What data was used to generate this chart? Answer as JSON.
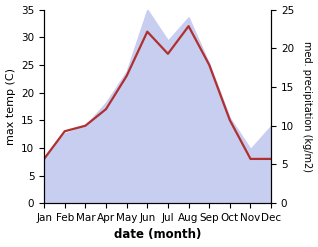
{
  "months": [
    "Jan",
    "Feb",
    "Mar",
    "Apr",
    "May",
    "Jun",
    "Jul",
    "Aug",
    "Sep",
    "Oct",
    "Nov",
    "Dec"
  ],
  "temperature": [
    8,
    13,
    14,
    17,
    23,
    31,
    27,
    32,
    25,
    15,
    8,
    8
  ],
  "precipitation": [
    6,
    9,
    10,
    13,
    17,
    25,
    21,
    24,
    18,
    11,
    7,
    10
  ],
  "temp_color": "#b03030",
  "precip_fill_color": "#c8cef0",
  "temp_ylim": [
    0,
    35
  ],
  "precip_ylim": [
    0,
    25
  ],
  "xlabel": "date (month)",
  "ylabel_left": "max temp (C)",
  "ylabel_right": "med. precipitation (kg/m2)",
  "background_color": "#ffffff",
  "temp_linewidth": 1.6,
  "tick_label_fontsize": 7.5,
  "axis_label_fontsize": 8.0
}
